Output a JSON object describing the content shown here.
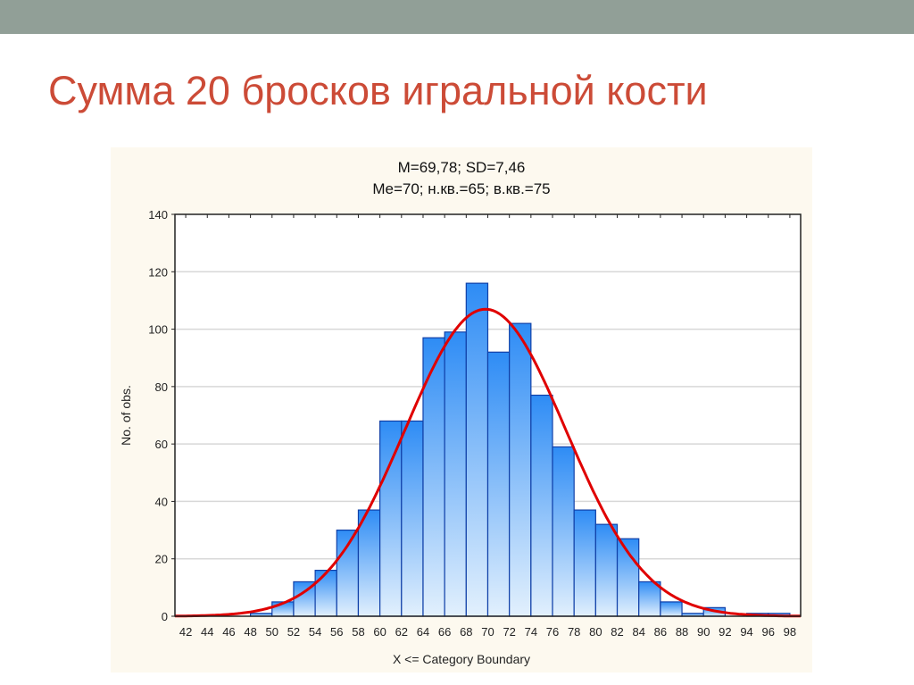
{
  "slide": {
    "title": "Сумма 20 бросков игральной кости"
  },
  "colors": {
    "topbar": "#919f97",
    "title": "#cc4b37",
    "bar_top": "#2e8cf5",
    "bar_bottom": "#e2f0fd",
    "bar_edge": "#1040a8",
    "curve": "#e00000",
    "panel": "#fdf9ef"
  },
  "chart_data": {
    "type": "bar",
    "title_line1": "M=69,78; SD=7,46",
    "title_line2": "Me=70; н.кв.=65; в.кв.=75",
    "xlabel": "X <= Category Boundary",
    "ylabel": "No. of obs.",
    "ylim": [
      0,
      140
    ],
    "yticks": [
      "0",
      "20",
      "40",
      "60",
      "80",
      "100",
      "120",
      "140"
    ],
    "xlim": [
      41,
      99
    ],
    "xticks": [
      "42",
      "44",
      "46",
      "48",
      "50",
      "52",
      "54",
      "56",
      "58",
      "60",
      "62",
      "64",
      "66",
      "68",
      "70",
      "72",
      "74",
      "76",
      "78",
      "80",
      "82",
      "84",
      "86",
      "88",
      "90",
      "92",
      "94",
      "96",
      "98"
    ],
    "bins": [
      [
        48,
        50
      ],
      [
        50,
        52
      ],
      [
        52,
        54
      ],
      [
        54,
        56
      ],
      [
        56,
        58
      ],
      [
        58,
        60
      ],
      [
        60,
        62
      ],
      [
        62,
        64
      ],
      [
        64,
        66
      ],
      [
        66,
        68
      ],
      [
        68,
        70
      ],
      [
        70,
        72
      ],
      [
        72,
        74
      ],
      [
        74,
        76
      ],
      [
        76,
        78
      ],
      [
        78,
        80
      ],
      [
        80,
        82
      ],
      [
        82,
        84
      ],
      [
        84,
        86
      ],
      [
        86,
        88
      ],
      [
        88,
        90
      ],
      [
        90,
        92
      ],
      [
        92,
        94
      ],
      [
        94,
        96
      ],
      [
        96,
        98
      ]
    ],
    "values": [
      1,
      5,
      12,
      16,
      30,
      37,
      68,
      68,
      97,
      99,
      116,
      92,
      102,
      77,
      59,
      37,
      32,
      27,
      12,
      5,
      1,
      3,
      0,
      1,
      1
    ],
    "grid": "horizontal",
    "fitted_curve": {
      "type": "normal",
      "mean": 69.78,
      "sd": 7.46,
      "n": 1000,
      "bin_width": 2
    }
  }
}
